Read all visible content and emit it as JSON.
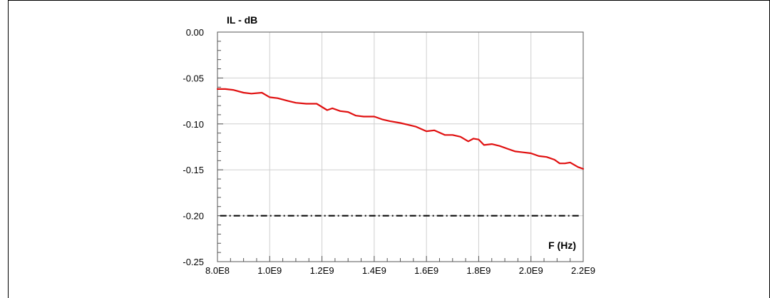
{
  "chart_data": {
    "type": "line",
    "ylabel": "IL - dB",
    "xlabel": "F (Hz)",
    "xlim": [
      800000000,
      2200000000
    ],
    "ylim": [
      -0.25,
      0.0
    ],
    "grid": true,
    "x_ticks": [
      800000000,
      1000000000,
      1200000000,
      1400000000,
      1600000000,
      1800000000,
      2000000000,
      2200000000
    ],
    "x_tick_labels": [
      "8.0E8",
      "1.0E9",
      "1.2E9",
      "1.4E9",
      "1.6E9",
      "1.8E9",
      "2.0E9",
      "2.2E9"
    ],
    "y_ticks": [
      0.0,
      -0.05,
      -0.1,
      -0.15,
      -0.2,
      -0.25
    ],
    "y_tick_labels": [
      "0.00",
      "-0.05",
      "-0.10",
      "-0.15",
      "-0.20",
      "-0.25"
    ],
    "series": [
      {
        "color": "#e01010",
        "style": "solid",
        "x": [
          800000000,
          830000000,
          860000000,
          900000000,
          930000000,
          970000000,
          1000000000,
          1030000000,
          1070000000,
          1100000000,
          1140000000,
          1180000000,
          1220000000,
          1240000000,
          1270000000,
          1300000000,
          1330000000,
          1360000000,
          1400000000,
          1430000000,
          1460000000,
          1500000000,
          1530000000,
          1560000000,
          1600000000,
          1630000000,
          1670000000,
          1700000000,
          1730000000,
          1760000000,
          1780000000,
          1800000000,
          1820000000,
          1850000000,
          1880000000,
          1910000000,
          1940000000,
          1970000000,
          2000000000,
          2030000000,
          2060000000,
          2090000000,
          2110000000,
          2130000000,
          2150000000,
          2180000000,
          2200000000
        ],
        "y": [
          -0.062,
          -0.062,
          -0.063,
          -0.066,
          -0.067,
          -0.066,
          -0.071,
          -0.072,
          -0.075,
          -0.077,
          -0.078,
          -0.078,
          -0.085,
          -0.083,
          -0.086,
          -0.087,
          -0.091,
          -0.092,
          -0.092,
          -0.095,
          -0.097,
          -0.099,
          -0.101,
          -0.103,
          -0.108,
          -0.107,
          -0.112,
          -0.112,
          -0.114,
          -0.119,
          -0.116,
          -0.117,
          -0.123,
          -0.122,
          -0.124,
          -0.127,
          -0.13,
          -0.131,
          -0.132,
          -0.135,
          -0.136,
          -0.139,
          -0.143,
          -0.143,
          -0.142,
          -0.147,
          -0.149
        ]
      },
      {
        "color": "#000000",
        "style": "dash-dot",
        "x": [
          810000000,
          2190000000
        ],
        "y": [
          -0.2,
          -0.2
        ]
      }
    ]
  }
}
